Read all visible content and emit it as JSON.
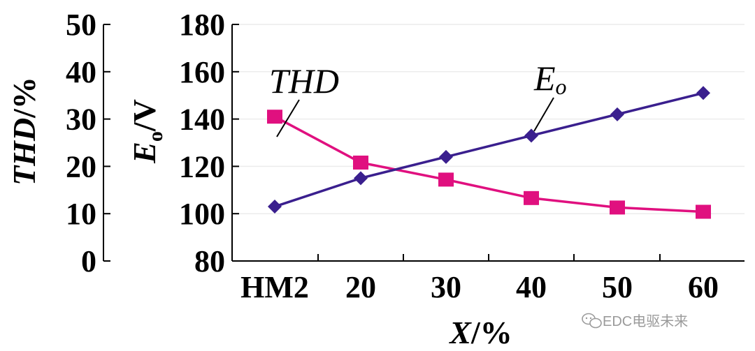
{
  "chart_data": {
    "type": "line",
    "categories": [
      "HM2",
      "20",
      "30",
      "40",
      "50",
      "60"
    ],
    "xlabel": {
      "var": "X",
      "unit": "/%"
    },
    "y_right_label": {
      "var": "E",
      "sub": "o",
      "unit": "/V"
    },
    "y_left_label": {
      "var": "THD",
      "unit": "/%"
    },
    "ylim_eo": [
      80,
      180
    ],
    "eo_ticks": [
      "80",
      "100",
      "120",
      "140",
      "160",
      "180"
    ],
    "ylim_thd": [
      0,
      50
    ],
    "thd_ticks": [
      "0",
      "10",
      "20",
      "30",
      "40",
      "50"
    ],
    "grid": true,
    "series": [
      {
        "name": "THD",
        "axis": "thd",
        "color": "#e0107f",
        "marker": "square",
        "values": [
          30.5,
          20.8,
          17.2,
          13.3,
          11.3,
          10.4
        ]
      },
      {
        "name": "Eo",
        "label_main": "E",
        "label_sub": "o",
        "axis": "eo",
        "color": "#3a1f8e",
        "marker": "diamond",
        "values": [
          103,
          115,
          124,
          133,
          142,
          151
        ]
      }
    ]
  },
  "watermark": {
    "text": "EDC电驱未来",
    "icon": "wechat-icon"
  }
}
